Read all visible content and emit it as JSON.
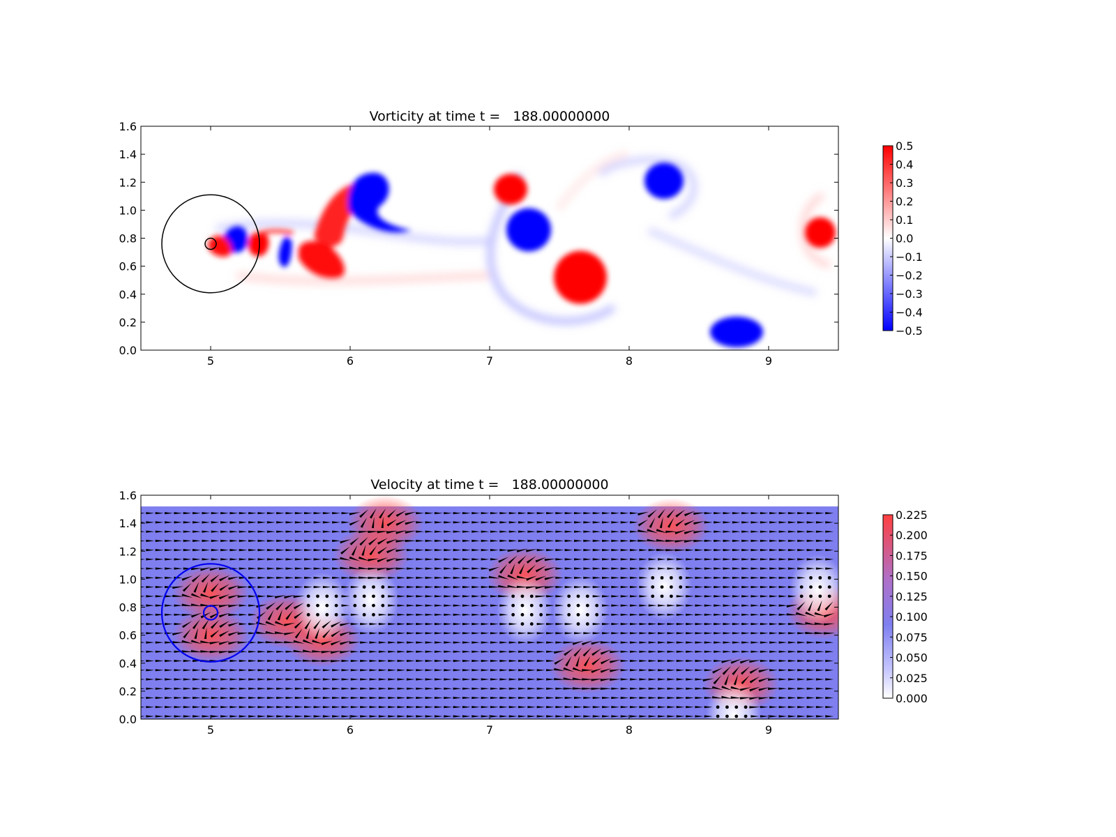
{
  "chart_data": [
    {
      "type": "heatmap",
      "title": "Vorticity at time t =   188.00000000",
      "xlim": [
        4.5,
        9.5
      ],
      "ylim": [
        0.0,
        1.6
      ],
      "xticks": [
        "5",
        "6",
        "7",
        "8",
        "9"
      ],
      "xtick_values": [
        5,
        6,
        7,
        8,
        9
      ],
      "yticks": [
        "0.0",
        "0.2",
        "0.4",
        "0.6",
        "0.8",
        "1.0",
        "1.2",
        "1.4",
        "1.6"
      ],
      "ytick_values": [
        0.0,
        0.2,
        0.4,
        0.6,
        0.8,
        1.0,
        1.2,
        1.4,
        1.6
      ],
      "colormap": "bwr",
      "colors": {
        "low": "#0000ff",
        "mid": "#ffffff",
        "high": "#ff0000"
      },
      "colorbar_range": [
        -0.5,
        0.5
      ],
      "colorbar_ticks": [
        "0.5",
        "0.4",
        "0.3",
        "0.2",
        "0.1",
        "0.0",
        "−0.1",
        "−0.2",
        "−0.3",
        "−0.4",
        "−0.5"
      ],
      "colorbar_tick_values": [
        0.5,
        0.4,
        0.3,
        0.2,
        0.1,
        0.0,
        -0.1,
        -0.2,
        -0.3,
        -0.4,
        -0.5
      ],
      "vortices": [
        {
          "x": 7.15,
          "y": 1.15,
          "value": 0.5
        },
        {
          "x": 7.28,
          "y": 0.86,
          "value": -0.5
        },
        {
          "x": 7.65,
          "y": 0.52,
          "value": 0.5
        },
        {
          "x": 8.25,
          "y": 1.21,
          "value": -0.5
        },
        {
          "x": 8.77,
          "y": 0.13,
          "value": -0.5
        },
        {
          "x": 9.37,
          "y": 0.84,
          "value": 0.5
        },
        {
          "x": 6.12,
          "y": 1.1,
          "value": -0.5
        },
        {
          "x": 5.83,
          "y": 0.67,
          "value": 0.5
        },
        {
          "x": 5.52,
          "y": 0.71,
          "value": -0.5
        },
        {
          "x": 5.33,
          "y": 0.71,
          "value": 0.5
        },
        {
          "x": 5.19,
          "y": 0.78,
          "value": -0.5
        },
        {
          "x": 5.12,
          "y": 0.72,
          "value": 0.5
        }
      ],
      "obstacle": {
        "x": 5.0,
        "y": 0.76,
        "r": 0.04
      },
      "outer_circle": {
        "x": 5.0,
        "y": 0.76,
        "r": 0.35
      }
    },
    {
      "type": "heatmap",
      "title": "Velocity at time t =   188.00000000",
      "xlim": [
        4.5,
        9.5
      ],
      "ylim": [
        0.0,
        1.6
      ],
      "xticks": [
        "5",
        "6",
        "7",
        "8",
        "9"
      ],
      "xtick_values": [
        5,
        6,
        7,
        8,
        9
      ],
      "yticks": [
        "0.0",
        "0.2",
        "0.4",
        "0.6",
        "0.8",
        "1.0",
        "1.2",
        "1.4",
        "1.6"
      ],
      "ytick_values": [
        0.0,
        0.2,
        0.4,
        0.6,
        0.8,
        1.0,
        1.2,
        1.4,
        1.6
      ],
      "colormap": "white-blue-red",
      "colors": {
        "low": "#ffffff",
        "mid": "#7f7ff0",
        "high": "#ff4040"
      },
      "colorbar_range": [
        0.0,
        0.225
      ],
      "colorbar_ticks": [
        "0.225",
        "0.200",
        "0.175",
        "0.150",
        "0.125",
        "0.100",
        "0.075",
        "0.050",
        "0.025",
        "0.000"
      ],
      "colorbar_tick_values": [
        0.225,
        0.2,
        0.175,
        0.15,
        0.125,
        0.1,
        0.075,
        0.05,
        0.025,
        0.0
      ],
      "field_top_y": 1.52,
      "background_speed": 0.1,
      "fast_regions": [
        {
          "x": 5.0,
          "y": 0.9,
          "speed": 0.2
        },
        {
          "x": 5.0,
          "y": 0.6,
          "speed": 0.2
        },
        {
          "x": 5.55,
          "y": 0.7,
          "speed": 0.2
        },
        {
          "x": 5.8,
          "y": 0.57,
          "speed": 0.22
        },
        {
          "x": 6.15,
          "y": 1.17,
          "speed": 0.22
        },
        {
          "x": 6.25,
          "y": 1.4,
          "speed": 0.2
        },
        {
          "x": 7.25,
          "y": 1.03,
          "speed": 0.22
        },
        {
          "x": 7.7,
          "y": 0.38,
          "speed": 0.22
        },
        {
          "x": 8.3,
          "y": 1.38,
          "speed": 0.22
        },
        {
          "x": 8.8,
          "y": 0.25,
          "speed": 0.2
        },
        {
          "x": 9.4,
          "y": 0.77,
          "speed": 0.18
        }
      ],
      "slow_regions": [
        {
          "x": 5.8,
          "y": 0.8,
          "speed": 0.02
        },
        {
          "x": 6.15,
          "y": 0.85,
          "speed": 0.02
        },
        {
          "x": 7.25,
          "y": 0.78,
          "speed": 0.02
        },
        {
          "x": 7.65,
          "y": 0.78,
          "speed": 0.02
        },
        {
          "x": 8.25,
          "y": 0.95,
          "speed": 0.02
        },
        {
          "x": 8.75,
          "y": 0.03,
          "speed": 0.02
        },
        {
          "x": 9.35,
          "y": 0.93,
          "speed": 0.02
        }
      ],
      "obstacle": {
        "x": 5.0,
        "y": 0.76,
        "r": 0.05
      },
      "outer_circle": {
        "x": 5.0,
        "y": 0.76,
        "r": 0.35
      },
      "quiver": {
        "x_start": 4.5,
        "x_step": 0.0667,
        "y_start": 0.02,
        "y_step": 0.066
      }
    }
  ]
}
